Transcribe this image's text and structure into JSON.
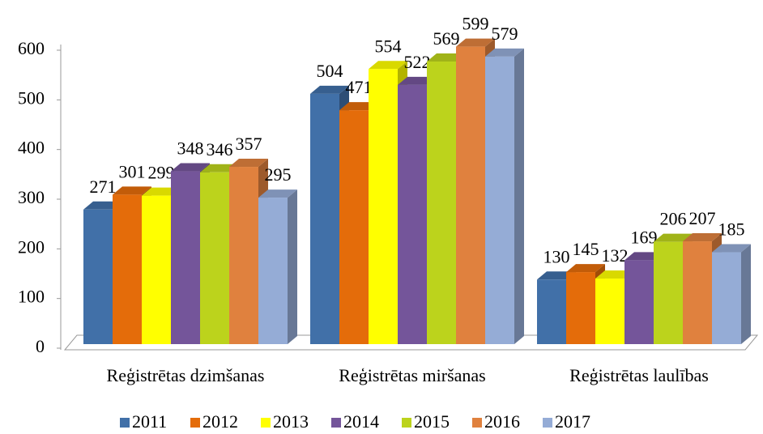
{
  "chart_data": {
    "type": "bar3d",
    "categories": [
      "Reģistrētas dzimšanas",
      "Reģistrētas miršanas",
      "Reģistrētas laulības"
    ],
    "series": [
      {
        "name": "2011",
        "color": "#4170a8",
        "values": [
          271,
          504,
          130
        ]
      },
      {
        "name": "2012",
        "color": "#e46c0a",
        "values": [
          301,
          471,
          145
        ]
      },
      {
        "name": "2013",
        "color": "#ffff00",
        "values": [
          299,
          554,
          132
        ]
      },
      {
        "name": "2014",
        "color": "#74559a",
        "values": [
          348,
          522,
          169
        ]
      },
      {
        "name": "2015",
        "color": "#bcd31c",
        "values": [
          346,
          569,
          206
        ]
      },
      {
        "name": "2016",
        "color": "#e0813e",
        "values": [
          357,
          599,
          207
        ]
      },
      {
        "name": "2017",
        "color": "#95acd6",
        "values": [
          295,
          579,
          185
        ]
      }
    ],
    "ylim": [
      0,
      600
    ],
    "yticks": [
      0,
      100,
      200,
      300,
      400,
      500,
      600
    ],
    "grid": false
  }
}
